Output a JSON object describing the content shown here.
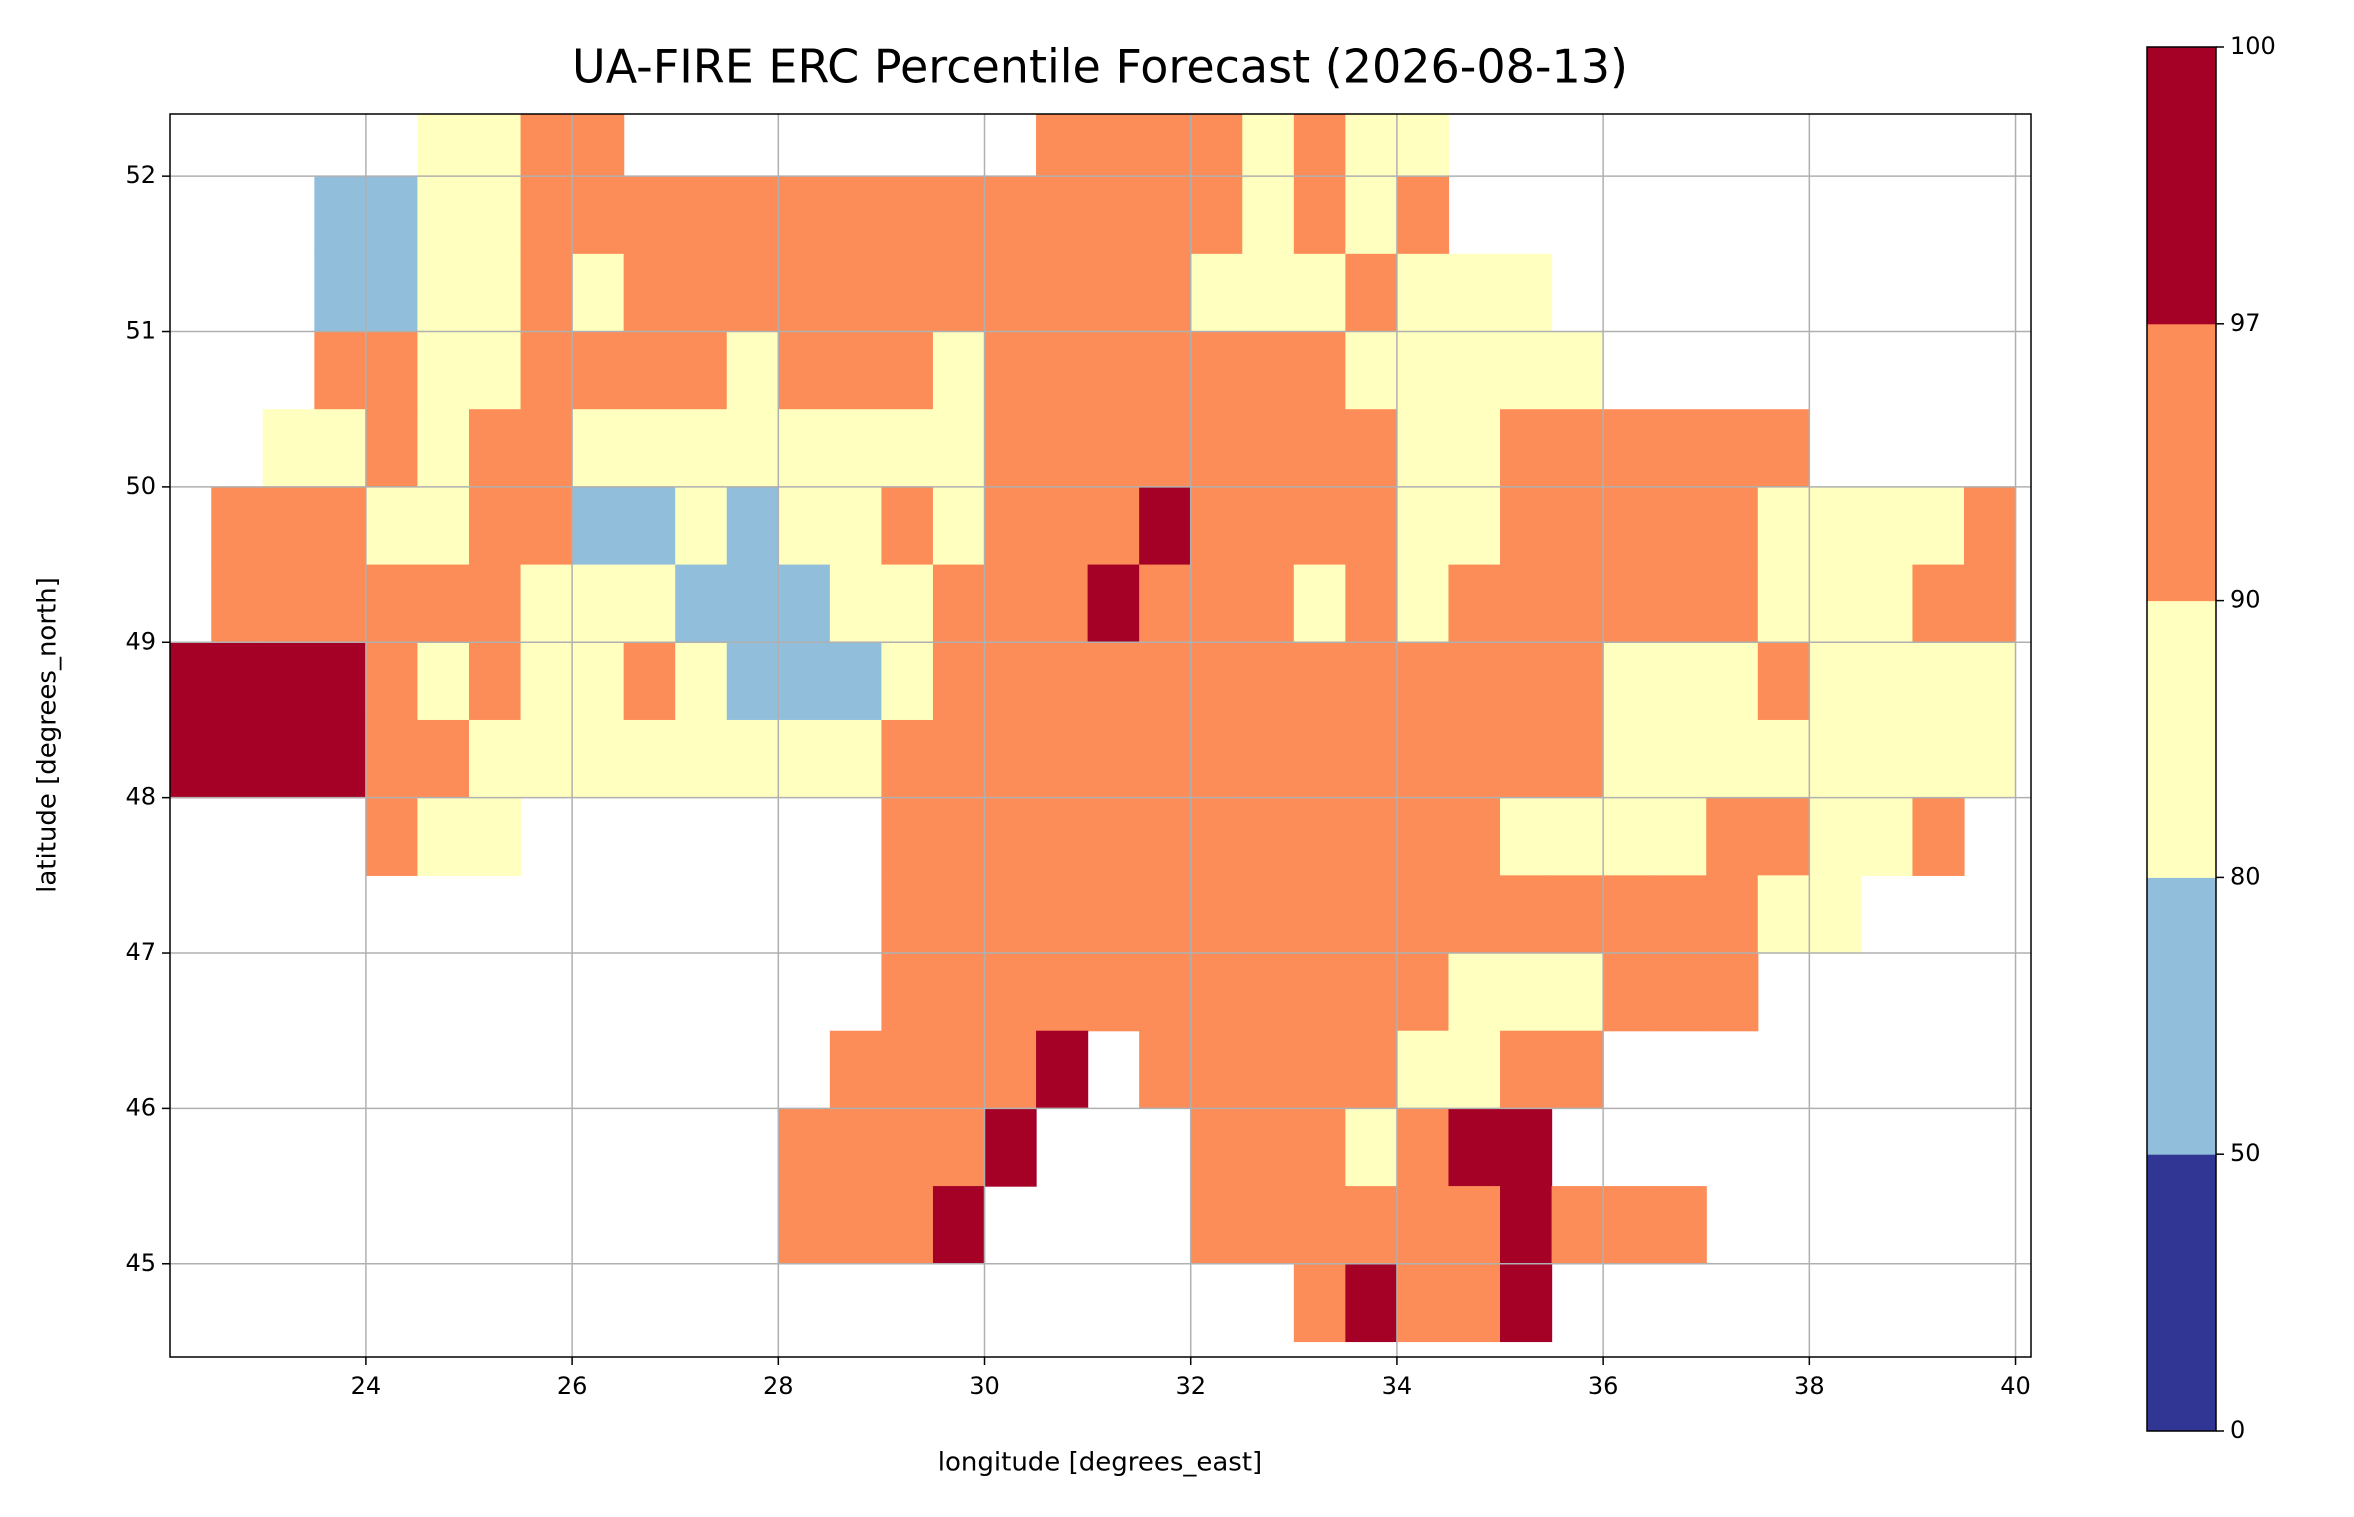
{
  "chart_data": {
    "type": "heatmap",
    "title": "UA-FIRE ERC Percentile Forecast (2026-08-13)",
    "x_label": "longitude [degrees_east]",
    "y_label": "latitude [degrees_north]",
    "xlim": [
      22.1,
      40.15
    ],
    "ylim": [
      44.4,
      52.4
    ],
    "xticks": [
      24,
      26,
      28,
      30,
      32,
      34,
      36,
      38,
      40
    ],
    "yticks": [
      45,
      46,
      47,
      48,
      49,
      50,
      51,
      52
    ],
    "grid": true,
    "x": [
      22.25,
      22.75,
      23.25,
      23.75,
      24.25,
      24.75,
      25.25,
      25.75,
      26.25,
      26.75,
      27.25,
      27.75,
      28.25,
      28.75,
      29.25,
      29.75,
      30.25,
      30.75,
      31.25,
      31.75,
      32.25,
      32.75,
      33.25,
      33.75,
      34.25,
      34.75,
      35.25,
      35.75,
      36.25,
      36.75,
      37.25,
      37.75,
      38.25,
      38.75,
      39.25,
      39.75
    ],
    "y": [
      52.25,
      51.75,
      51.25,
      50.75,
      50.25,
      49.75,
      49.25,
      48.75,
      48.25,
      47.75,
      47.25,
      46.75,
      46.25,
      45.75,
      45.25,
      44.75
    ],
    "z": [
      [
        null,
        null,
        null,
        null,
        null,
        85,
        85,
        93,
        93,
        null,
        null,
        null,
        null,
        null,
        null,
        null,
        null,
        93,
        93,
        93,
        93,
        85,
        93,
        85,
        85,
        null,
        null,
        null,
        null,
        null,
        null,
        null,
        null,
        null,
        null,
        null
      ],
      [
        null,
        null,
        null,
        65,
        65,
        85,
        85,
        93,
        93,
        93,
        93,
        93,
        93,
        93,
        93,
        93,
        93,
        93,
        93,
        93,
        93,
        85,
        93,
        85,
        93,
        null,
        null,
        null,
        null,
        null,
        null,
        null,
        null,
        null,
        null,
        null
      ],
      [
        null,
        null,
        null,
        65,
        65,
        85,
        85,
        93,
        85,
        93,
        93,
        93,
        93,
        93,
        93,
        93,
        93,
        93,
        93,
        93,
        85,
        85,
        85,
        93,
        85,
        85,
        85,
        null,
        null,
        null,
        null,
        null,
        null,
        null,
        null,
        null
      ],
      [
        null,
        null,
        null,
        93,
        93,
        85,
        85,
        93,
        93,
        93,
        93,
        85,
        93,
        93,
        93,
        85,
        93,
        93,
        93,
        93,
        93,
        93,
        93,
        85,
        85,
        85,
        85,
        85,
        null,
        null,
        null,
        null,
        null,
        null,
        null,
        null
      ],
      [
        null,
        null,
        85,
        85,
        93,
        85,
        93,
        93,
        85,
        85,
        85,
        85,
        85,
        85,
        85,
        85,
        93,
        93,
        93,
        93,
        93,
        93,
        93,
        93,
        85,
        85,
        93,
        93,
        93,
        93,
        93,
        93,
        null,
        null,
        null,
        null
      ],
      [
        null,
        93,
        93,
        93,
        85,
        85,
        93,
        93,
        65,
        65,
        85,
        65,
        85,
        85,
        93,
        85,
        93,
        93,
        93,
        98,
        93,
        93,
        93,
        93,
        85,
        85,
        93,
        93,
        93,
        93,
        93,
        85,
        85,
        85,
        85,
        93
      ],
      [
        null,
        93,
        93,
        93,
        93,
        93,
        93,
        85,
        85,
        85,
        65,
        65,
        65,
        85,
        85,
        93,
        93,
        93,
        98,
        93,
        93,
        93,
        85,
        93,
        85,
        93,
        93,
        93,
        93,
        93,
        93,
        85,
        85,
        85,
        93,
        93
      ],
      [
        98,
        98,
        98,
        98,
        93,
        85,
        93,
        85,
        85,
        93,
        85,
        65,
        65,
        65,
        85,
        93,
        93,
        93,
        93,
        93,
        93,
        93,
        93,
        93,
        93,
        93,
        93,
        93,
        85,
        85,
        85,
        93,
        85,
        85,
        85,
        85
      ],
      [
        98,
        98,
        98,
        98,
        93,
        93,
        85,
        85,
        85,
        85,
        85,
        85,
        85,
        85,
        93,
        93,
        93,
        93,
        93,
        93,
        93,
        93,
        93,
        93,
        93,
        93,
        93,
        93,
        85,
        85,
        85,
        85,
        85,
        85,
        85,
        85
      ],
      [
        null,
        null,
        null,
        null,
        93,
        85,
        85,
        null,
        null,
        null,
        null,
        null,
        null,
        null,
        93,
        93,
        93,
        93,
        93,
        93,
        93,
        93,
        93,
        93,
        93,
        93,
        85,
        85,
        85,
        85,
        93,
        93,
        85,
        85,
        93,
        null
      ],
      [
        null,
        null,
        null,
        null,
        null,
        null,
        null,
        null,
        null,
        null,
        null,
        null,
        null,
        null,
        93,
        93,
        93,
        93,
        93,
        93,
        93,
        93,
        93,
        93,
        93,
        93,
        93,
        93,
        93,
        93,
        93,
        85,
        85,
        null,
        null,
        null
      ],
      [
        null,
        null,
        null,
        null,
        null,
        null,
        null,
        null,
        null,
        null,
        null,
        null,
        null,
        null,
        93,
        93,
        93,
        93,
        93,
        93,
        93,
        93,
        93,
        93,
        93,
        85,
        85,
        85,
        93,
        93,
        93,
        null,
        null,
        null,
        null,
        null
      ],
      [
        null,
        null,
        null,
        null,
        null,
        null,
        null,
        null,
        null,
        null,
        null,
        null,
        null,
        93,
        93,
        93,
        93,
        98,
        null,
        93,
        93,
        93,
        93,
        93,
        85,
        85,
        93,
        93,
        null,
        null,
        null,
        null,
        null,
        null,
        null,
        null
      ],
      [
        null,
        null,
        null,
        null,
        null,
        null,
        null,
        null,
        null,
        null,
        null,
        null,
        93,
        93,
        93,
        93,
        98,
        null,
        null,
        null,
        93,
        93,
        93,
        85,
        93,
        98,
        98,
        null,
        null,
        null,
        null,
        null,
        null,
        null,
        null,
        null
      ],
      [
        null,
        null,
        null,
        null,
        null,
        null,
        null,
        null,
        null,
        null,
        null,
        null,
        93,
        93,
        93,
        98,
        null,
        null,
        null,
        null,
        93,
        93,
        93,
        93,
        93,
        93,
        98,
        93,
        93,
        93,
        null,
        null,
        null,
        null,
        null,
        null
      ],
      [
        null,
        null,
        null,
        null,
        null,
        null,
        null,
        null,
        null,
        null,
        null,
        null,
        null,
        null,
        null,
        null,
        null,
        null,
        null,
        null,
        null,
        null,
        93,
        98,
        93,
        93,
        98,
        null,
        null,
        null,
        null,
        null,
        null,
        null,
        null,
        null
      ]
    ],
    "colorbar": {
      "levels": [
        0,
        50,
        80,
        90,
        97,
        100
      ],
      "colors": [
        "#313695",
        "#91bfdb",
        "#ffffbf",
        "#fc8d59",
        "#a50026"
      ]
    }
  }
}
